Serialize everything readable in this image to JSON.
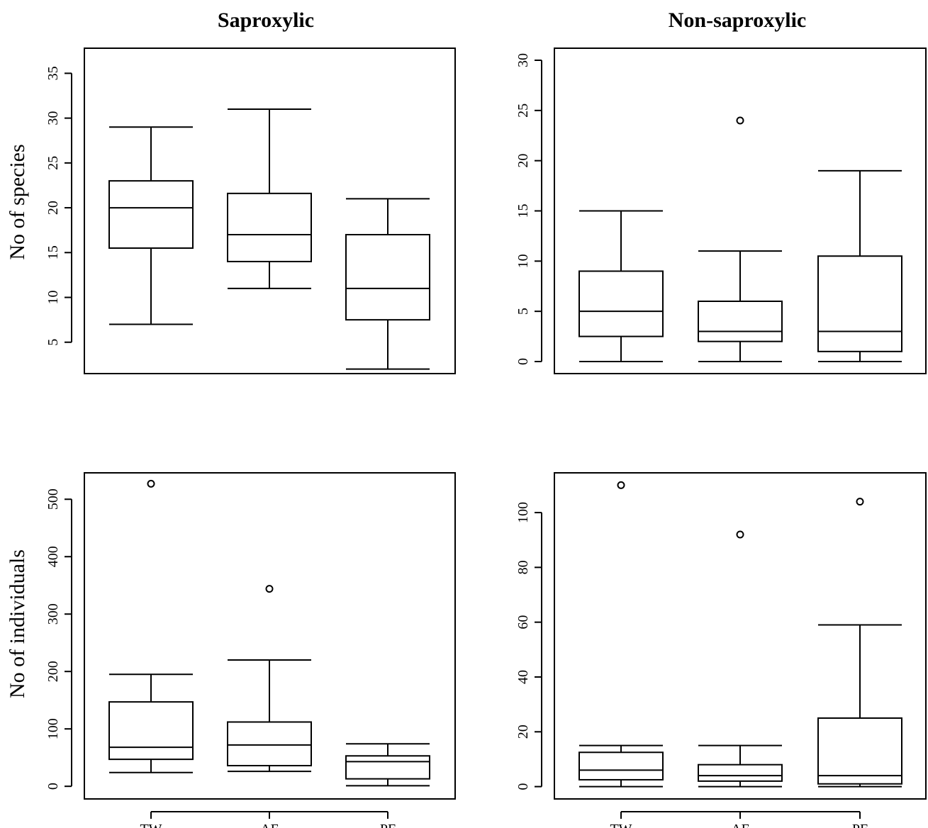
{
  "column_titles": [
    "Saproxylic",
    "Non-saproxylic"
  ],
  "row_labels": [
    "No of species",
    "No of individuals"
  ],
  "chart_data": [
    {
      "type": "box",
      "title": "Saproxylic",
      "ylabel": "No of species",
      "categories": [
        "TW",
        "AF",
        "PF"
      ],
      "show_category_labels": false,
      "ylim": [
        1.5,
        37.8
      ],
      "yticks": [
        5,
        10,
        15,
        20,
        25,
        30,
        35
      ],
      "boxes": [
        {
          "category": "TW",
          "min": 7,
          "q1": 15.5,
          "median": 20,
          "q3": 23,
          "max": 29,
          "outliers": []
        },
        {
          "category": "AF",
          "min": 11,
          "q1": 14,
          "median": 17,
          "q3": 21.6,
          "max": 31,
          "outliers": []
        },
        {
          "category": "PF",
          "min": 2,
          "q1": 7.5,
          "median": 11,
          "q3": 17,
          "max": 21,
          "outliers": []
        }
      ]
    },
    {
      "type": "box",
      "title": "Non-saproxylic",
      "ylabel": "",
      "categories": [
        "TW",
        "AF",
        "PF"
      ],
      "show_category_labels": false,
      "ylim": [
        -1.2,
        31.2
      ],
      "yticks": [
        0,
        5,
        10,
        15,
        20,
        25,
        30
      ],
      "boxes": [
        {
          "category": "TW",
          "min": 0,
          "q1": 2.5,
          "median": 5,
          "q3": 9,
          "max": 15,
          "outliers": []
        },
        {
          "category": "AF",
          "min": 0,
          "q1": 2,
          "median": 3,
          "q3": 6,
          "max": 11,
          "outliers": [
            24
          ]
        },
        {
          "category": "PF",
          "min": 0,
          "q1": 1,
          "median": 3,
          "q3": 10.5,
          "max": 19,
          "outliers": []
        }
      ]
    },
    {
      "type": "box",
      "title": "",
      "ylabel": "No of individuals",
      "categories": [
        "TW",
        "AF",
        "PF"
      ],
      "show_category_labels": true,
      "ylim": [
        -22,
        546
      ],
      "yticks": [
        0,
        100,
        200,
        300,
        400,
        500
      ],
      "boxes": [
        {
          "category": "TW",
          "min": 24,
          "q1": 47,
          "median": 68,
          "q3": 147,
          "max": 195,
          "outliers": [
            527
          ]
        },
        {
          "category": "AF",
          "min": 26,
          "q1": 36,
          "median": 72,
          "q3": 112,
          "max": 220,
          "outliers": [
            344
          ]
        },
        {
          "category": "PF",
          "min": 1,
          "q1": 13,
          "median": 43,
          "q3": 53,
          "max": 74,
          "outliers": []
        }
      ]
    },
    {
      "type": "box",
      "title": "",
      "ylabel": "",
      "categories": [
        "TW",
        "AF",
        "PF"
      ],
      "show_category_labels": true,
      "ylim": [
        -4.5,
        114.5
      ],
      "yticks": [
        0,
        20,
        40,
        60,
        80,
        100
      ],
      "boxes": [
        {
          "category": "TW",
          "min": 0,
          "q1": 2.5,
          "median": 6,
          "q3": 12.5,
          "max": 15,
          "outliers": [
            110
          ]
        },
        {
          "category": "AF",
          "min": 0,
          "q1": 2,
          "median": 4,
          "q3": 8,
          "max": 15,
          "outliers": [
            92
          ]
        },
        {
          "category": "PF",
          "min": 0,
          "q1": 1,
          "median": 4,
          "q3": 25,
          "max": 59,
          "outliers": [
            104
          ]
        }
      ]
    }
  ]
}
